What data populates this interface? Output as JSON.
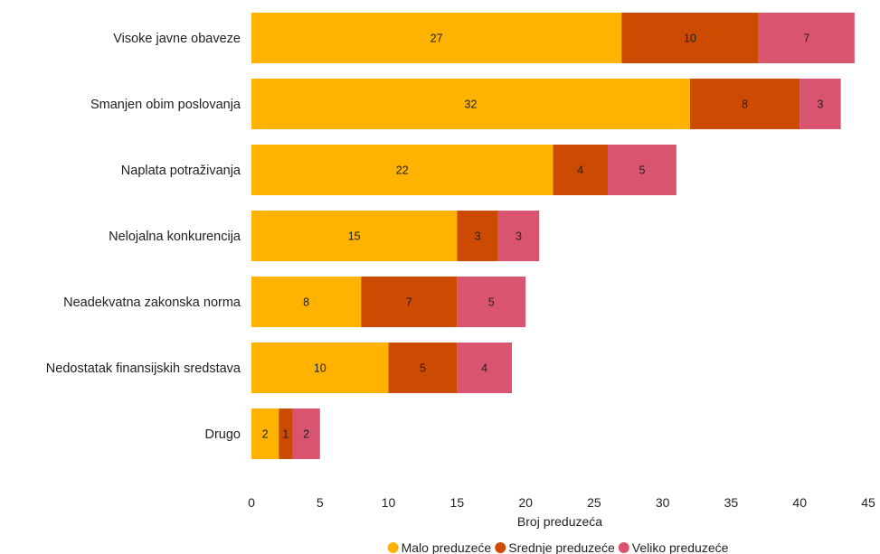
{
  "chart_data": {
    "type": "bar",
    "orientation": "horizontal",
    "stacked": true,
    "categories": [
      "Visoke javne obaveze",
      "Smanjen obim poslovanja",
      "Naplata potraživanja",
      "Nelojalna konkurencija",
      "Neadekvatna zakonska norma",
      "Nedostatak finansijskih sredstava",
      "Drugo"
    ],
    "series": [
      {
        "name": "Malo preduzeće",
        "color": "#FFB300",
        "values": [
          27,
          32,
          22,
          15,
          8,
          10,
          2
        ]
      },
      {
        "name": "Srednje preduzeće",
        "color": "#CC4A02",
        "values": [
          10,
          8,
          4,
          3,
          7,
          5,
          1
        ]
      },
      {
        "name": "Veliko preduzeće",
        "color": "#D9546E",
        "values": [
          7,
          3,
          5,
          3,
          5,
          4,
          2
        ]
      }
    ],
    "xlabel": "Broj preduzeća",
    "ylabel": "",
    "xlim": [
      0,
      45
    ],
    "xticks": [
      0,
      5,
      10,
      15,
      20,
      25,
      30,
      35,
      40,
      45
    ],
    "grid": false,
    "legend_position": "bottom",
    "data_labels": true
  }
}
